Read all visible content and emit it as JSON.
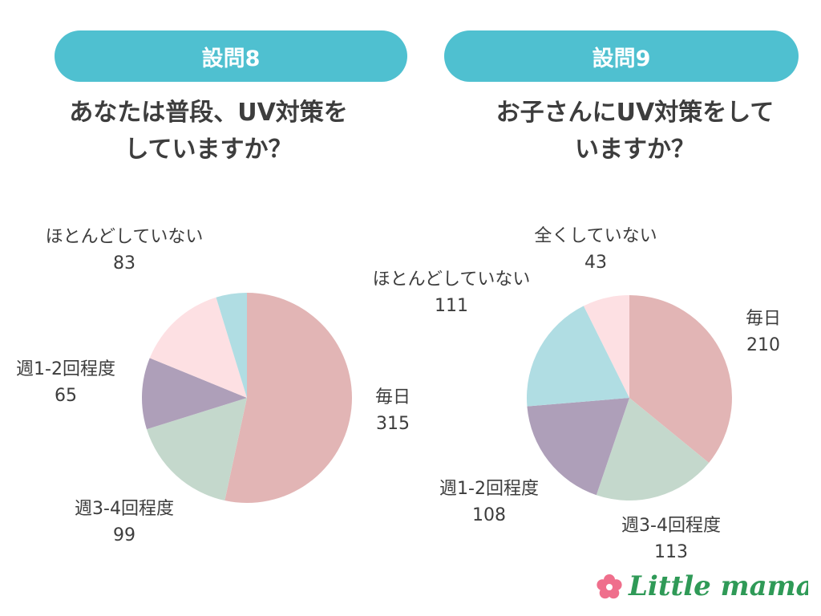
{
  "charts": [
    {
      "header": "設問8",
      "question": "あなたは普段、UV対策を\nしていますか？"
    },
    {
      "header": "設問9",
      "question": "お子さんにUV対策をして\nいますか？"
    }
  ],
  "chart_data": [
    {
      "type": "pie",
      "title": "あなたは普段、UV対策をしていますか？",
      "start_angle_deg": 0,
      "direction": "clockwise",
      "slices": [
        {
          "label": "毎日",
          "value": 315,
          "color": "#e2b5b5"
        },
        {
          "label": "週3-4回程度",
          "value": 99,
          "color": "#c4d8cc"
        },
        {
          "label": "週1-2回程度",
          "value": 65,
          "color": "#ae9fb9"
        },
        {
          "label": "ほとんどしていない",
          "value": 83,
          "color": "#fde0e3"
        },
        {
          "label": "",
          "value": 28,
          "color": "#b0dde3"
        }
      ]
    },
    {
      "type": "pie",
      "title": "お子さんにUV対策をしていますか？",
      "start_angle_deg": 0,
      "direction": "clockwise",
      "slices": [
        {
          "label": "毎日",
          "value": 210,
          "color": "#e2b5b5"
        },
        {
          "label": "週3-4回程度",
          "value": 113,
          "color": "#c4d8cc"
        },
        {
          "label": "週1-2回程度",
          "value": 108,
          "color": "#ae9fb9"
        },
        {
          "label": "ほとんどしていない",
          "value": 111,
          "color": "#b0dde3"
        },
        {
          "label": "全くしていない",
          "value": 43,
          "color": "#fde0e3"
        }
      ]
    }
  ],
  "branding": {
    "logo_text": "Little mama",
    "logo_color": "#2f9a57",
    "flower_color": "#ef6f8c"
  }
}
